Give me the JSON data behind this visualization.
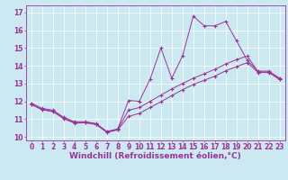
{
  "xlabel": "Windchill (Refroidissement éolien,°C)",
  "bg_color": "#cce8f0",
  "line_color": "#993399",
  "xlim": [
    -0.5,
    23.5
  ],
  "ylim": [
    9.8,
    17.4
  ],
  "xticks": [
    0,
    1,
    2,
    3,
    4,
    5,
    6,
    7,
    8,
    9,
    10,
    11,
    12,
    13,
    14,
    15,
    16,
    17,
    18,
    19,
    20,
    21,
    22,
    23
  ],
  "yticks": [
    10,
    11,
    12,
    13,
    14,
    15,
    16,
    17
  ],
  "line1_x": [
    0,
    1,
    2,
    3,
    4,
    5,
    6,
    7,
    8,
    9,
    10,
    11,
    12,
    13,
    14,
    15,
    16,
    17,
    18,
    19,
    20,
    21,
    22,
    23
  ],
  "line1_y": [
    11.9,
    11.6,
    11.5,
    11.1,
    10.85,
    10.85,
    10.75,
    10.3,
    10.45,
    12.05,
    12.0,
    13.25,
    15.0,
    13.3,
    14.55,
    16.8,
    16.25,
    16.25,
    16.5,
    15.4,
    14.3,
    13.7,
    13.7,
    13.3
  ],
  "line2_x": [
    0,
    1,
    2,
    3,
    4,
    5,
    6,
    7,
    8,
    9,
    10,
    11,
    12,
    13,
    14,
    15,
    16,
    17,
    18,
    19,
    20,
    21,
    22,
    23
  ],
  "line2_y": [
    11.85,
    11.55,
    11.45,
    11.05,
    10.8,
    10.82,
    10.72,
    10.28,
    10.42,
    11.5,
    11.65,
    12.0,
    12.35,
    12.7,
    13.0,
    13.3,
    13.55,
    13.8,
    14.1,
    14.35,
    14.55,
    13.65,
    13.65,
    13.25
  ],
  "line3_x": [
    0,
    1,
    2,
    3,
    4,
    5,
    6,
    7,
    8,
    9,
    10,
    11,
    12,
    13,
    14,
    15,
    16,
    17,
    18,
    19,
    20,
    21,
    22,
    23
  ],
  "line3_y": [
    11.82,
    11.52,
    11.42,
    11.02,
    10.77,
    10.79,
    10.69,
    10.25,
    10.39,
    11.15,
    11.32,
    11.65,
    11.98,
    12.32,
    12.65,
    12.95,
    13.18,
    13.42,
    13.72,
    13.95,
    14.18,
    13.62,
    13.62,
    13.22
  ],
  "xlabel_fontsize": 6.5,
  "tick_fontsize": 5.5,
  "marker": "+"
}
